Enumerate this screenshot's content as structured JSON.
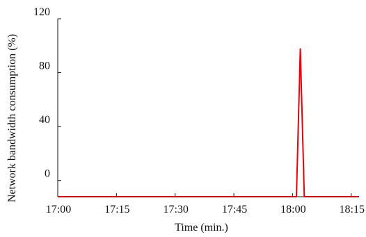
{
  "chart_data": {
    "type": "line",
    "xlabel": "Time (min.)",
    "ylabel": "Network bandwidth consumption (%)",
    "x_ticks": [
      "17:00",
      "17:15",
      "17:30",
      "17:45",
      "18:00",
      "18:15"
    ],
    "y_ticks": [
      0,
      40,
      80,
      120
    ],
    "xlim": [
      "17:00",
      "18:17"
    ],
    "ylim": [
      -12,
      120
    ],
    "grid": false,
    "legend": "none",
    "series": [
      {
        "color": "#e8000b",
        "points": [
          {
            "x": "17:00",
            "y": -12
          },
          {
            "x": "18:01",
            "y": -12
          },
          {
            "x": "18:02",
            "y": 98
          },
          {
            "x": "18:03",
            "y": -12
          },
          {
            "x": "18:17",
            "y": -12
          }
        ]
      }
    ]
  }
}
